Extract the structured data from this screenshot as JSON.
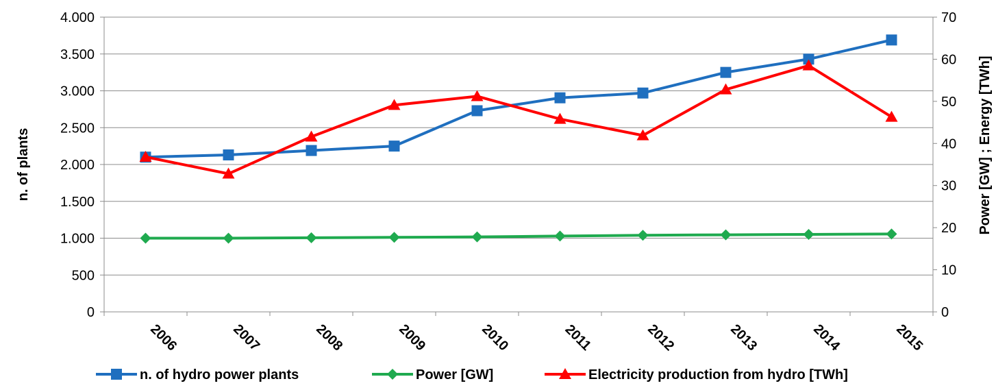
{
  "chart_data": {
    "type": "line",
    "title": "",
    "categories": [
      "2006",
      "2007",
      "2008",
      "2009",
      "2010",
      "2011",
      "2012",
      "2013",
      "2014",
      "2015"
    ],
    "y_left": {
      "label": "n. of plants",
      "ylim": [
        0,
        4000
      ],
      "ticks": [
        0,
        500,
        1000,
        1500,
        2000,
        2500,
        3000,
        3500,
        4000
      ],
      "tick_labels": [
        "0",
        "500",
        "1.000",
        "1.500",
        "2.000",
        "2.500",
        "3.000",
        "3.500",
        "4.000"
      ]
    },
    "y_right": {
      "label": "Power [GW] ; Energy [TWh]",
      "ylim": [
        0,
        70
      ],
      "ticks": [
        0,
        10,
        20,
        30,
        40,
        50,
        60,
        70
      ],
      "tick_labels": [
        "0",
        "10",
        "20",
        "30",
        "40",
        "50",
        "60",
        "70"
      ]
    },
    "grid": true,
    "legend_position": "bottom",
    "series": [
      {
        "name": "n. of hydro power plants",
        "axis": "left",
        "color": "#1f6fbf",
        "marker": "square",
        "values": [
          2100,
          2130,
          2190,
          2250,
          2730,
          2905,
          2970,
          3250,
          3430,
          3690
        ]
      },
      {
        "name": "Power [GW]",
        "axis": "right",
        "color": "#1faa4f",
        "marker": "diamond",
        "values": [
          17.5,
          17.5,
          17.6,
          17.7,
          17.8,
          18.0,
          18.2,
          18.3,
          18.4,
          18.5
        ]
      },
      {
        "name": "Electricity production from hydro [TWh]",
        "axis": "right",
        "color": "#ff0000",
        "marker": "triangle",
        "values": [
          36.8,
          32.8,
          41.6,
          49.1,
          51.2,
          45.8,
          41.9,
          52.8,
          58.5,
          46.3
        ]
      }
    ]
  }
}
